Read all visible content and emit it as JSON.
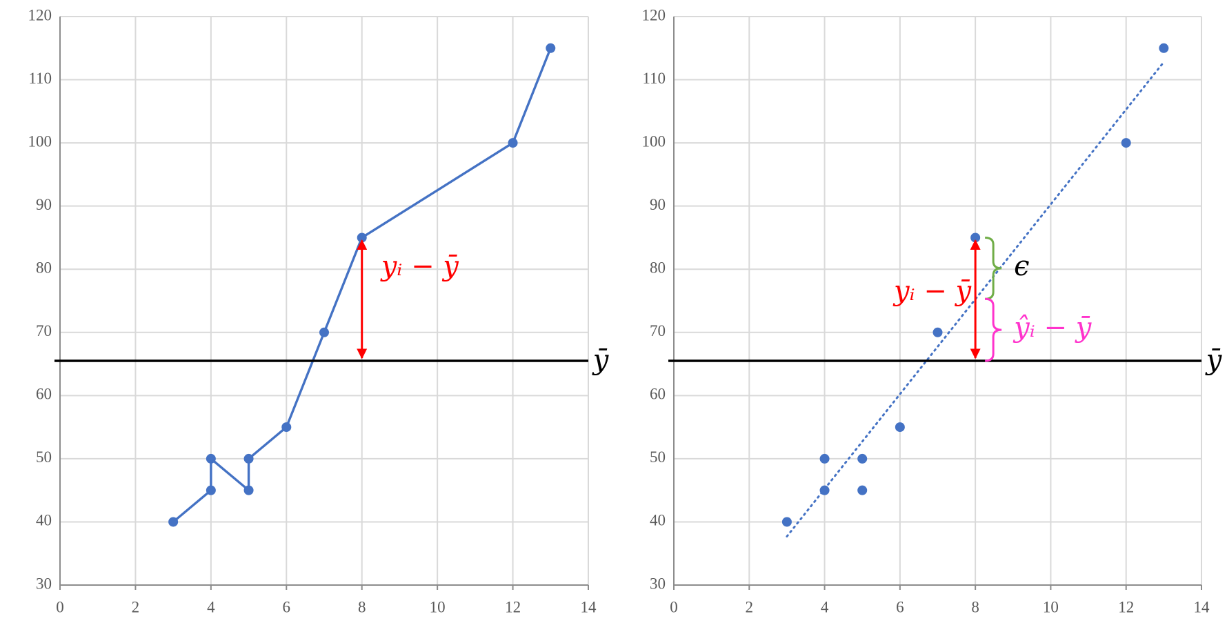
{
  "chart_data": [
    {
      "type": "line",
      "xlim": [
        0,
        14
      ],
      "ylim": [
        30,
        120
      ],
      "xticks": [
        0,
        2,
        4,
        6,
        8,
        10,
        12,
        14
      ],
      "yticks": [
        30,
        40,
        50,
        60,
        70,
        80,
        90,
        100,
        110,
        120
      ],
      "grid": true,
      "series": [
        {
          "color": "#4472c4",
          "x": [
            3,
            4,
            4,
            5,
            5,
            6,
            7,
            8,
            12,
            13
          ],
          "values": [
            40,
            45,
            50,
            45,
            50,
            55,
            70,
            85,
            100,
            115
          ]
        }
      ],
      "mean_line": {
        "value": 65.5,
        "label": "ȳ",
        "color": "#000000"
      },
      "annotations": [
        {
          "kind": "arrow",
          "text": "yᵢ − ȳ",
          "color": "#ff0000",
          "x": 8,
          "from": 65.5,
          "to": 85
        }
      ]
    },
    {
      "type": "scatter",
      "xlim": [
        0,
        14
      ],
      "ylim": [
        30,
        120
      ],
      "xticks": [
        0,
        2,
        4,
        6,
        8,
        10,
        12,
        14
      ],
      "yticks": [
        30,
        40,
        50,
        60,
        70,
        80,
        90,
        100,
        110,
        120
      ],
      "grid": true,
      "series": [
        {
          "color": "#4472c4",
          "x": [
            3,
            4,
            4,
            5,
            5,
            6,
            7,
            8,
            12,
            13
          ],
          "values": [
            40,
            45,
            50,
            45,
            50,
            55,
            70,
            85,
            100,
            115
          ]
        },
        {
          "color": "#4472c4",
          "style": "dotted",
          "x": [
            3,
            13
          ],
          "values": [
            37.7,
            112.8
          ]
        }
      ],
      "mean_line": {
        "value": 65.5,
        "label": "ȳ",
        "color": "#000000"
      },
      "annotations": [
        {
          "kind": "arrow",
          "text": "yᵢ − ȳ",
          "color": "#ff0000",
          "x": 8,
          "from": 65.5,
          "to": 85
        },
        {
          "kind": "brace",
          "text": "ϵ",
          "color": "#70ad47",
          "x": 8,
          "from": 75.3,
          "to": 85
        },
        {
          "kind": "brace",
          "text": "ŷᵢ − ȳ",
          "color": "#ff33cc",
          "x": 8,
          "from": 65.5,
          "to": 75.3
        }
      ]
    }
  ]
}
